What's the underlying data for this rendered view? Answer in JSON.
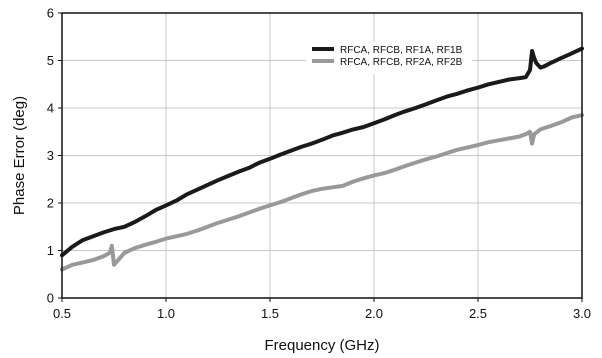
{
  "chart_data": {
    "type": "line",
    "title": "",
    "xlabel": "Frequency (GHz)",
    "ylabel": "Phase Error (deg)",
    "xlim": [
      0.5,
      3.0
    ],
    "ylim": [
      0,
      6
    ],
    "x_ticks": [
      "0.5",
      "1.0",
      "1.5",
      "2.0",
      "2.5",
      "3.0"
    ],
    "y_ticks": [
      "0",
      "1",
      "2",
      "3",
      "4",
      "5",
      "6"
    ],
    "grid": true,
    "legend_position": "top-right",
    "series": [
      {
        "name": "RFCA, RFCB, RF1A, RF1B",
        "color": "#1a1a1a",
        "x": [
          0.5,
          0.55,
          0.6,
          0.65,
          0.7,
          0.75,
          0.8,
          0.85,
          0.9,
          0.95,
          1.0,
          1.05,
          1.1,
          1.15,
          1.2,
          1.25,
          1.3,
          1.35,
          1.4,
          1.45,
          1.5,
          1.55,
          1.6,
          1.65,
          1.7,
          1.75,
          1.8,
          1.85,
          1.9,
          1.95,
          2.0,
          2.05,
          2.1,
          2.15,
          2.2,
          2.25,
          2.3,
          2.35,
          2.4,
          2.45,
          2.5,
          2.55,
          2.6,
          2.65,
          2.7,
          2.73,
          2.75,
          2.76,
          2.77,
          2.78,
          2.8,
          2.82,
          2.85,
          2.9,
          2.95,
          3.0
        ],
        "values": [
          0.9,
          1.08,
          1.22,
          1.3,
          1.38,
          1.45,
          1.5,
          1.6,
          1.72,
          1.85,
          1.95,
          2.05,
          2.18,
          2.28,
          2.38,
          2.48,
          2.57,
          2.66,
          2.74,
          2.85,
          2.93,
          3.02,
          3.1,
          3.18,
          3.25,
          3.33,
          3.42,
          3.48,
          3.55,
          3.6,
          3.68,
          3.76,
          3.85,
          3.93,
          4.0,
          4.08,
          4.16,
          4.24,
          4.3,
          4.37,
          4.43,
          4.5,
          4.55,
          4.6,
          4.63,
          4.65,
          4.8,
          5.2,
          5.05,
          4.95,
          4.85,
          4.88,
          4.95,
          5.05,
          5.15,
          5.25
        ]
      },
      {
        "name": "RFCA, RFCB, RF2A, RF2B",
        "color": "#999999",
        "x": [
          0.5,
          0.55,
          0.6,
          0.65,
          0.7,
          0.73,
          0.74,
          0.75,
          0.8,
          0.85,
          0.9,
          0.95,
          1.0,
          1.05,
          1.1,
          1.15,
          1.2,
          1.25,
          1.3,
          1.35,
          1.4,
          1.45,
          1.5,
          1.55,
          1.6,
          1.65,
          1.7,
          1.75,
          1.8,
          1.85,
          1.9,
          1.95,
          2.0,
          2.05,
          2.1,
          2.15,
          2.2,
          2.25,
          2.3,
          2.35,
          2.4,
          2.45,
          2.5,
          2.55,
          2.6,
          2.65,
          2.7,
          2.73,
          2.75,
          2.76,
          2.77,
          2.78,
          2.8,
          2.85,
          2.9,
          2.95,
          3.0
        ],
        "values": [
          0.6,
          0.7,
          0.75,
          0.8,
          0.88,
          0.95,
          1.1,
          0.7,
          0.95,
          1.05,
          1.12,
          1.18,
          1.25,
          1.3,
          1.35,
          1.42,
          1.5,
          1.58,
          1.65,
          1.72,
          1.8,
          1.88,
          1.95,
          2.02,
          2.1,
          2.18,
          2.25,
          2.3,
          2.33,
          2.36,
          2.45,
          2.52,
          2.58,
          2.63,
          2.7,
          2.78,
          2.85,
          2.92,
          2.98,
          3.05,
          3.12,
          3.17,
          3.22,
          3.28,
          3.32,
          3.36,
          3.4,
          3.45,
          3.5,
          3.25,
          3.45,
          3.48,
          3.55,
          3.62,
          3.7,
          3.8,
          3.85
        ]
      }
    ]
  }
}
